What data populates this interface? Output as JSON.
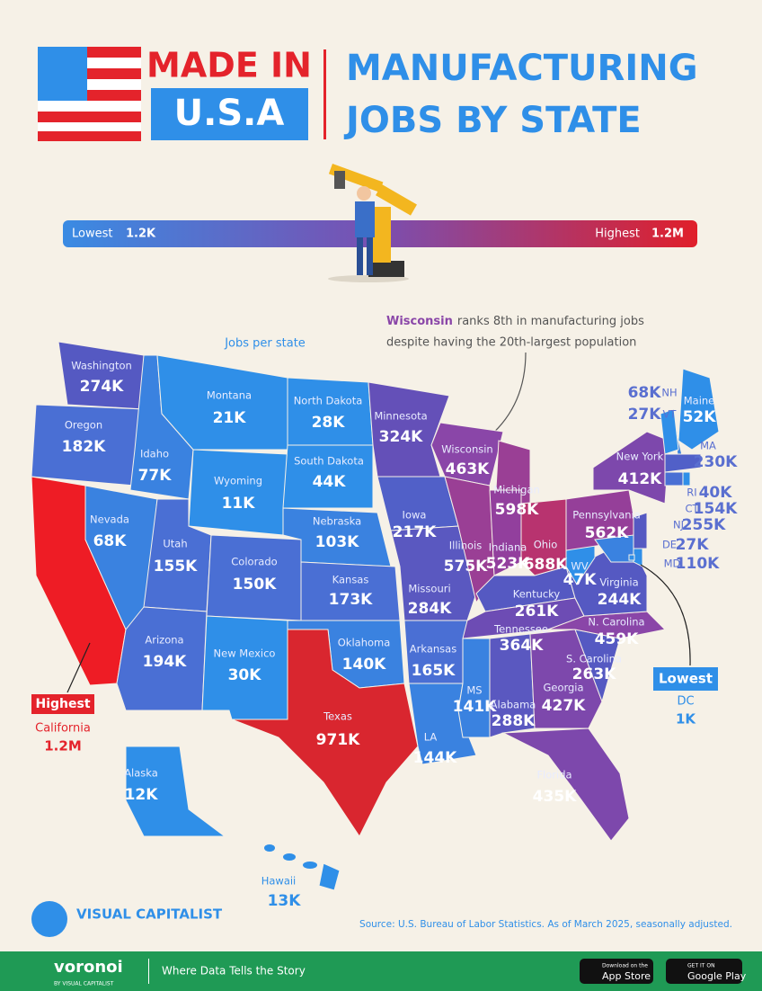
{
  "header": {
    "made_in": "MADE IN",
    "usa": "U.S.A",
    "title_1": "MANUFACTURING",
    "title_2": "JOBS BY STATE"
  },
  "legend": {
    "low_label": "Lowest",
    "low_value": "1.2K",
    "high_label": "Highest",
    "high_value": "1.2M"
  },
  "annotations": {
    "wisconsin_bold": "Wisconsin",
    "wisconsin_line_1": "ranks 8th in manufacturing jobs",
    "wisconsin_line_2": "despite having the 20th-largest population",
    "jobs_per_state": "Jobs per state",
    "highest_label": "Highest",
    "lowest_label": "Lowest"
  },
  "states": [
    {
      "name": "Washington",
      "value": "274K",
      "color": "#5559c2"
    },
    {
      "name": "Oregon",
      "value": "182K",
      "color": "#4a6fd4"
    },
    {
      "name": "California",
      "value": "1.2M",
      "color": "#ee1c25"
    },
    {
      "name": "Nevada",
      "value": "68K",
      "color": "#3a82e0"
    },
    {
      "name": "Idaho",
      "value": "77K",
      "color": "#3a82e0"
    },
    {
      "name": "Montana",
      "value": "21K",
      "color": "#2f8fe8"
    },
    {
      "name": "Wyoming",
      "value": "11K",
      "color": "#2f8fe8"
    },
    {
      "name": "Utah",
      "value": "155K",
      "color": "#4a6fd4"
    },
    {
      "name": "Colorado",
      "value": "150K",
      "color": "#4a6fd4"
    },
    {
      "name": "Arizona",
      "value": "194K",
      "color": "#4a6fd4"
    },
    {
      "name": "New Mexico",
      "value": "30K",
      "color": "#2f8fe8"
    },
    {
      "name": "North Dakota",
      "value": "28K",
      "color": "#2f8fe8"
    },
    {
      "name": "South Dakota",
      "value": "44K",
      "color": "#2f8fe8"
    },
    {
      "name": "Nebraska",
      "value": "103K",
      "color": "#3a82e0"
    },
    {
      "name": "Kansas",
      "value": "173K",
      "color": "#4a6fd4"
    },
    {
      "name": "Oklahoma",
      "value": "140K",
      "color": "#3a82e0"
    },
    {
      "name": "Texas",
      "value": "971K",
      "color": "#d9262f"
    },
    {
      "name": "Minnesota",
      "value": "324K",
      "color": "#6450b8"
    },
    {
      "name": "Iowa",
      "value": "217K",
      "color": "#5160c8"
    },
    {
      "name": "Missouri",
      "value": "284K",
      "color": "#5a58c0"
    },
    {
      "name": "Arkansas",
      "value": "165K",
      "color": "#4a6fd4"
    },
    {
      "name": "LA",
      "value": "144K",
      "color": "#3a82e0"
    },
    {
      "name": "Wisconsin",
      "value": "463K",
      "color": "#8a46a8"
    },
    {
      "name": "Illinois",
      "value": "575K",
      "color": "#9a3f95"
    },
    {
      "name": "Michigan",
      "value": "598K",
      "color": "#9a3f95"
    },
    {
      "name": "Indiana",
      "value": "523K",
      "color": "#923f9d"
    },
    {
      "name": "Ohio",
      "value": "688K",
      "color": "#b8336f"
    },
    {
      "name": "Kentucky",
      "value": "261K",
      "color": "#5559c2"
    },
    {
      "name": "Tennessee",
      "value": "364K",
      "color": "#6d4cb4"
    },
    {
      "name": "MS",
      "value": "141K",
      "color": "#3a82e0"
    },
    {
      "name": "Alabama",
      "value": "288K",
      "color": "#5a58c0"
    },
    {
      "name": "Georgia",
      "value": "427K",
      "color": "#7d48ac"
    },
    {
      "name": "Florida",
      "value": "435K",
      "color": "#7d48ac"
    },
    {
      "name": "S. Carolina",
      "value": "263K",
      "color": "#5559c2"
    },
    {
      "name": "N. Carolina",
      "value": "459K",
      "color": "#8a46a8"
    },
    {
      "name": "Virginia",
      "value": "244K",
      "color": "#5559c2"
    },
    {
      "name": "WV",
      "value": "47K",
      "color": "#2f8fe8"
    },
    {
      "name": "Pennsylvania",
      "value": "562K",
      "color": "#953f99"
    },
    {
      "name": "New York",
      "value": "412K",
      "color": "#7d48ac"
    },
    {
      "name": "Maine",
      "value": "52K",
      "color": "#2f8fe8"
    },
    {
      "name": "NH",
      "value": "68K",
      "color": "#3a82e0"
    },
    {
      "name": "VT",
      "value": "27K",
      "color": "#2f8fe8"
    },
    {
      "name": "MA",
      "value": "230K",
      "color": "#5160c8"
    },
    {
      "name": "RI",
      "value": "40K",
      "color": "#2f8fe8"
    },
    {
      "name": "CT",
      "value": "154K",
      "color": "#4a6fd4"
    },
    {
      "name": "NJ",
      "value": "255K",
      "color": "#5559c2"
    },
    {
      "name": "DE",
      "value": "27K",
      "color": "#2f8fe8"
    },
    {
      "name": "MD",
      "value": "110K",
      "color": "#3a82e0"
    },
    {
      "name": "DC",
      "value": "1K",
      "color": "#2f8fe8"
    },
    {
      "name": "Alaska",
      "value": "12K",
      "color": "#2f8fe8"
    },
    {
      "name": "Hawaii",
      "value": "13K",
      "color": "#2f8fe8"
    }
  ],
  "source": "Source: U.S. Bureau of Labor Statistics. As of March 2025, seasonally adjusted.",
  "footer": {
    "brand": "VISUAL CAPITALIST",
    "voronoi": "voronoi",
    "by": "BY VISUAL CAPITALIST",
    "tagline": "Where Data Tells the Story",
    "app_small": "Download on the",
    "app": "App Store",
    "play_small": "GET IT ON",
    "play": "Google Play"
  }
}
